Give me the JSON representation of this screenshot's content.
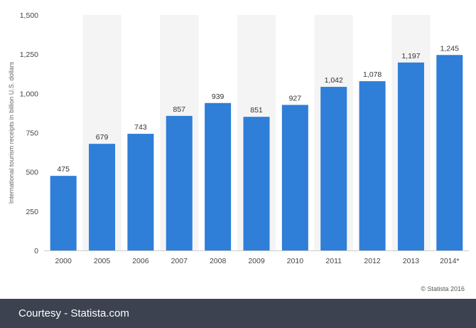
{
  "chart_data": {
    "type": "bar",
    "categories": [
      "2000",
      "2005",
      "2006",
      "2007",
      "2008",
      "2009",
      "2010",
      "2011",
      "2012",
      "2013",
      "2014*"
    ],
    "values": [
      475,
      679,
      743,
      857,
      939,
      851,
      927,
      1042,
      1078,
      1197,
      1245
    ],
    "value_labels": [
      "475",
      "679",
      "743",
      "857",
      "939",
      "851",
      "927",
      "1,042",
      "1,078",
      "1,197",
      "1,245"
    ],
    "title": "",
    "xlabel": "",
    "ylabel": "International tourism receipts in billion U.S. dollars",
    "ylim": [
      0,
      1500
    ],
    "yticks": [
      0,
      250,
      500,
      750,
      1000,
      1250,
      1500
    ],
    "ytick_labels": [
      "0",
      "250",
      "500",
      "750",
      "1,000",
      "1,250",
      "1,500"
    ],
    "grid": "alternating column shading",
    "bar_color": "#2f7ed8",
    "band_color": "#f4f4f4"
  },
  "credit": "© Statista 2016",
  "footer": {
    "text": "Courtesy - Statista.com",
    "background": "#3c4250"
  }
}
